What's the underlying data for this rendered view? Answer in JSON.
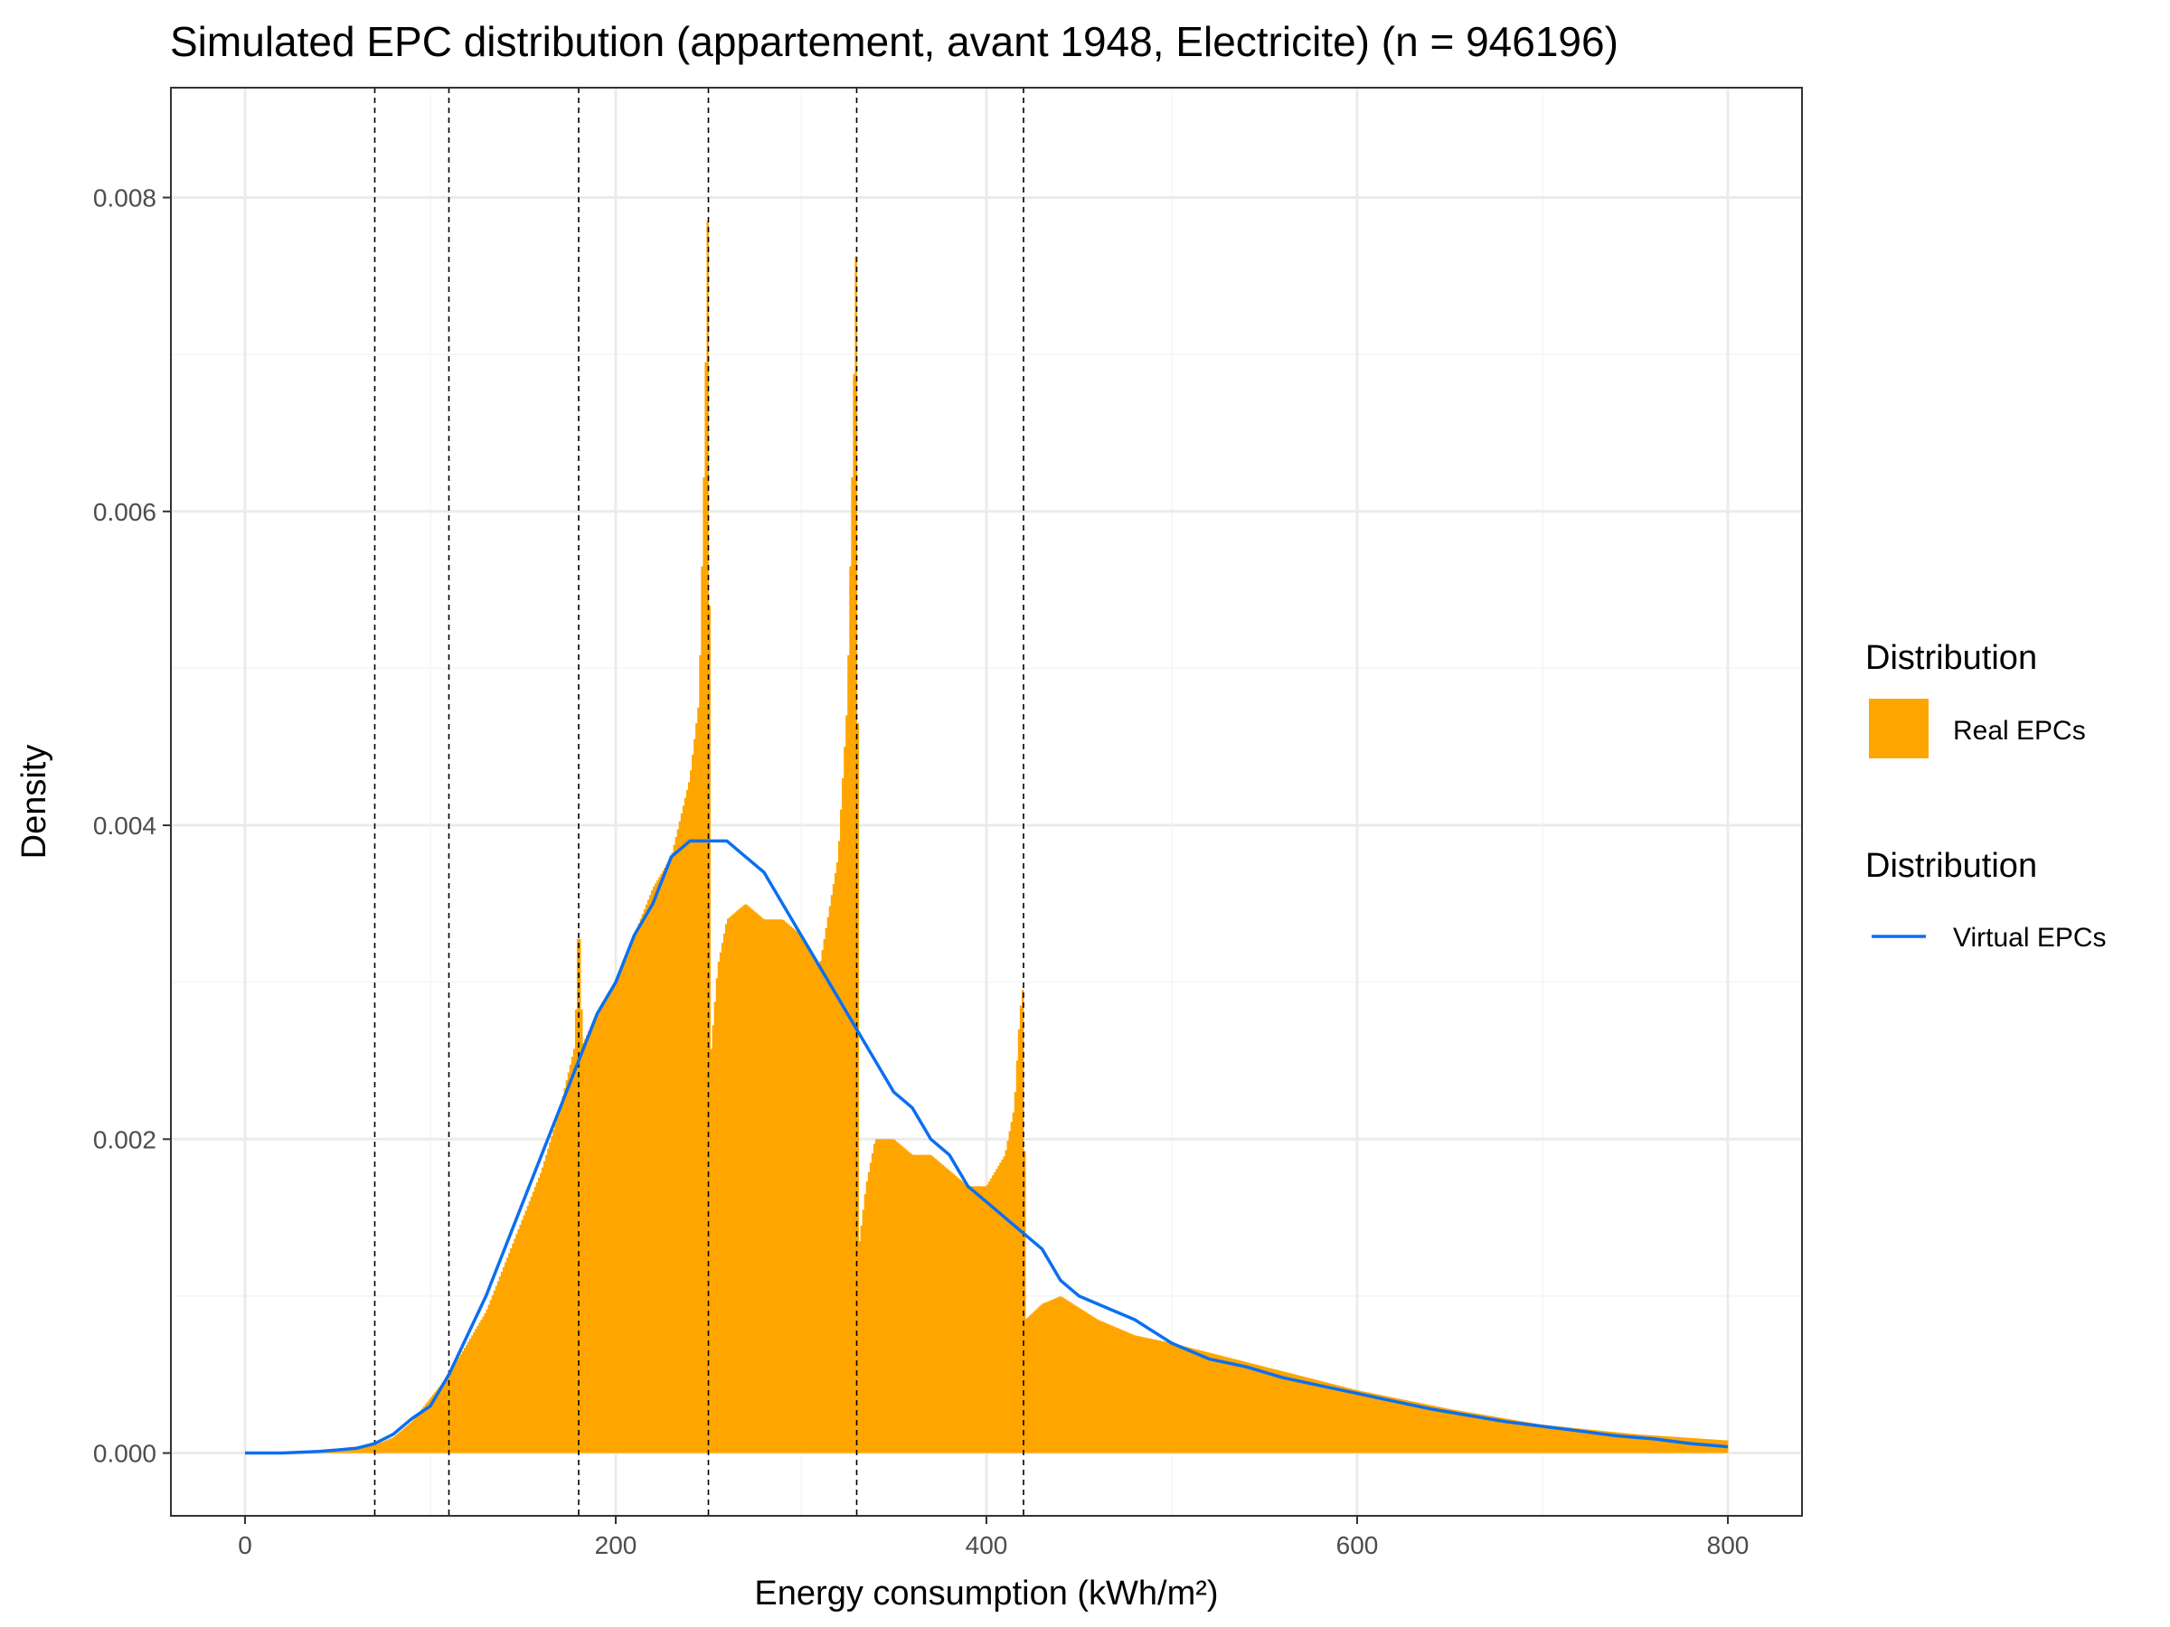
{
  "colors": {
    "real": "#FFA500",
    "virtual": "#0B6FF0",
    "threshold": "#000000",
    "grid_major": "#EBEBEB",
    "grid_minor": "#F5F5F5",
    "panel_border": "#333333"
  },
  "chart_data": {
    "type": "area",
    "title": "Simulated EPC distribution (appartement, avant 1948, Electricite) (n = 946196)",
    "xlabel": "Energy consumption (kWh/m²)",
    "ylabel": "Density",
    "xlim": [
      -40,
      840
    ],
    "ylim": [
      -0.0004,
      0.0087
    ],
    "x_ticks": [
      0,
      200,
      400,
      600,
      800
    ],
    "x_tick_labels": [
      "0",
      "200",
      "400",
      "600",
      "800"
    ],
    "y_ticks": [
      0,
      0.002,
      0.004,
      0.006,
      0.008
    ],
    "y_tick_labels": [
      "0.000",
      "0.002",
      "0.004",
      "0.006",
      "0.008"
    ],
    "grid": true,
    "legend_position": "right",
    "threshold_lines_x": [
      70,
      110,
      180,
      250,
      330,
      420
    ],
    "series": [
      {
        "name": "Real EPCs",
        "legend_title": "Distribution",
        "kind": "histogram",
        "x": [
          0,
          20,
          40,
          60,
          70,
          80,
          90,
          100,
          110,
          120,
          130,
          140,
          150,
          160,
          170,
          178,
          180,
          182,
          190,
          200,
          210,
          220,
          230,
          240,
          245,
          248,
          250,
          251,
          255,
          260,
          270,
          280,
          290,
          300,
          310,
          320,
          325,
          328,
          330,
          331,
          335,
          340,
          350,
          360,
          370,
          380,
          390,
          400,
          410,
          415,
          418,
          420,
          421,
          430,
          440,
          460,
          480,
          500,
          550,
          600,
          650,
          700,
          750,
          800
        ],
        "y": [
          0.0,
          0.0,
          1e-05,
          3e-05,
          5e-05,
          0.0001,
          0.0002,
          0.00035,
          0.0005,
          0.0007,
          0.0009,
          0.0012,
          0.0015,
          0.0018,
          0.0022,
          0.0026,
          0.0035,
          0.0026,
          0.0028,
          0.003,
          0.0033,
          0.0036,
          0.0038,
          0.0043,
          0.0048,
          0.0065,
          0.0083,
          0.0025,
          0.0031,
          0.0034,
          0.0035,
          0.0034,
          0.0034,
          0.0033,
          0.0031,
          0.0038,
          0.0048,
          0.0065,
          0.008,
          0.0013,
          0.0017,
          0.002,
          0.002,
          0.0019,
          0.0019,
          0.0018,
          0.0017,
          0.0017,
          0.0019,
          0.0022,
          0.0028,
          0.003,
          0.00085,
          0.00095,
          0.001,
          0.00085,
          0.00075,
          0.0007,
          0.00055,
          0.0004,
          0.00028,
          0.00018,
          0.00012,
          8e-05
        ]
      },
      {
        "name": "Virtual EPCs",
        "legend_title": "Distribution",
        "kind": "line",
        "x": [
          0,
          20,
          40,
          60,
          70,
          80,
          90,
          100,
          110,
          120,
          130,
          140,
          150,
          160,
          170,
          180,
          190,
          200,
          210,
          220,
          230,
          240,
          250,
          260,
          270,
          280,
          290,
          300,
          310,
          320,
          330,
          340,
          350,
          360,
          370,
          380,
          390,
          400,
          410,
          420,
          430,
          440,
          450,
          460,
          480,
          500,
          520,
          540,
          560,
          580,
          600,
          620,
          640,
          660,
          680,
          700,
          720,
          740,
          760,
          780,
          800
        ],
        "y": [
          0.0,
          0.0,
          1e-05,
          3e-05,
          6e-05,
          0.00012,
          0.00022,
          0.0003,
          0.0005,
          0.00075,
          0.001,
          0.0013,
          0.0016,
          0.0019,
          0.0022,
          0.0025,
          0.0028,
          0.003,
          0.0033,
          0.0035,
          0.0038,
          0.0039,
          0.0039,
          0.0039,
          0.0038,
          0.0037,
          0.0035,
          0.0033,
          0.0031,
          0.0029,
          0.0027,
          0.0025,
          0.0023,
          0.0022,
          0.002,
          0.0019,
          0.0017,
          0.0016,
          0.0015,
          0.0014,
          0.0013,
          0.0011,
          0.001,
          0.00095,
          0.00085,
          0.0007,
          0.0006,
          0.00055,
          0.00048,
          0.00043,
          0.00038,
          0.00033,
          0.00028,
          0.00024,
          0.0002,
          0.00017,
          0.00014,
          0.00011,
          9e-05,
          6e-05,
          4e-05
        ]
      }
    ]
  }
}
